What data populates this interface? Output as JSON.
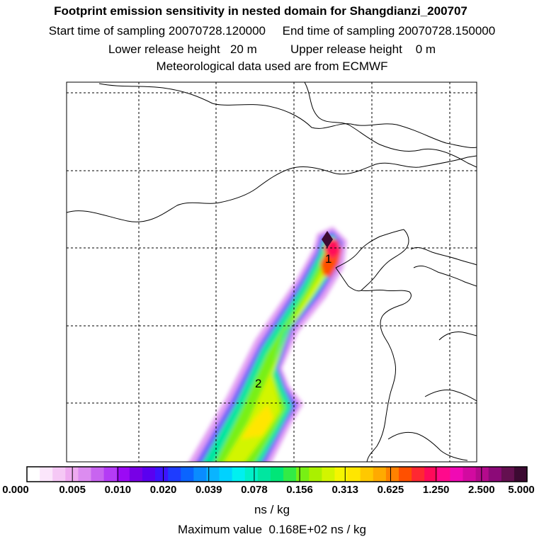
{
  "header": {
    "title": "Footprint emission sensitivity in nested domain for Shangdianzi_200707",
    "sampling_start_label": "Start time of sampling",
    "sampling_start": "20070728.120000",
    "sampling_end_label": "End time of sampling",
    "sampling_end": "20070728.150000",
    "lower_release_label": "Lower release height",
    "lower_release": "20 m",
    "upper_release_label": "Upper release height",
    "upper_release": "0 m",
    "met_data": "Meteorological data used are from ECMWF"
  },
  "map": {
    "markers": [
      {
        "label": "1"
      },
      {
        "label": "2"
      }
    ]
  },
  "colorbar": {
    "tick_labels": [
      "0.000",
      "0.005",
      "0.010",
      "0.020",
      "0.039",
      "0.078",
      "0.156",
      "0.313",
      "0.625",
      "1.250",
      "2.500",
      "5.000"
    ],
    "colors": [
      "#ffffff",
      "#fbe6fb",
      "#f5c8f5",
      "#eeaaf0",
      "#dc8cf0",
      "#c864f0",
      "#b43cf5",
      "#9b0af5",
      "#7800e6",
      "#5a00f0",
      "#3c14ff",
      "#1e3cff",
      "#0a64ff",
      "#0a8cff",
      "#0ab4ff",
      "#00d2ff",
      "#00f0f0",
      "#00f0c8",
      "#00e6a0",
      "#00e678",
      "#32eb46",
      "#78f014",
      "#aaf000",
      "#d2f500",
      "#f5f500",
      "#ffe600",
      "#ffc800",
      "#ffaa00",
      "#ff8200",
      "#ff5000",
      "#ff2832",
      "#ff0a5a",
      "#ff0a8c",
      "#f00ab4",
      "#d20aa0",
      "#b40a8c",
      "#8c0a78",
      "#641050",
      "#3c0a32"
    ],
    "units": "ns / kg",
    "max_label": "Maximum value",
    "max_value": "0.168E+02 ns / kg"
  }
}
